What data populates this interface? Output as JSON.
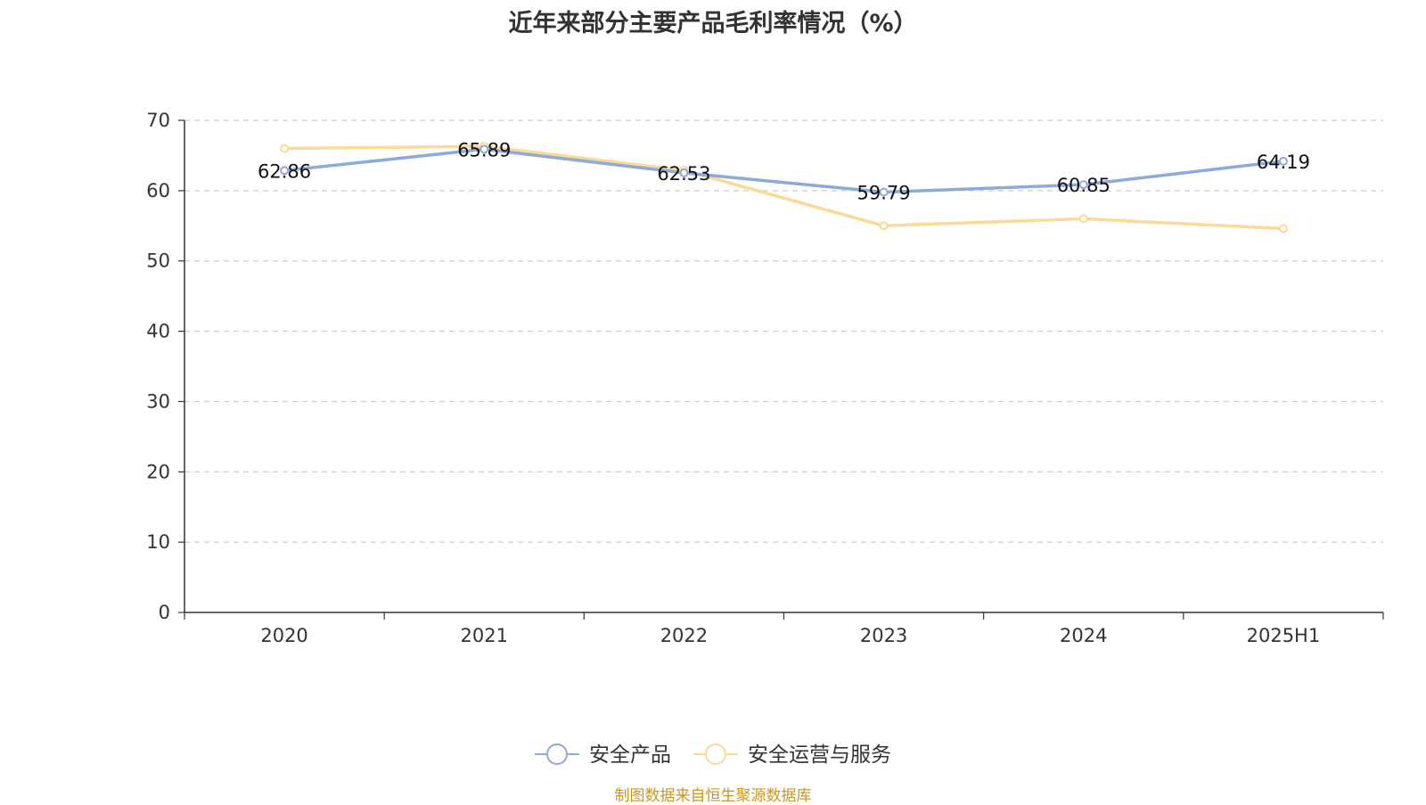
{
  "title": "近年来部分主要产品毛利率情况（%）",
  "source": "制图数据来自恒生聚源数据库",
  "chart_data": {
    "type": "line",
    "title": "近年来部分主要产品毛利率情况（%）",
    "categories": [
      "2020",
      "2021",
      "2022",
      "2023",
      "2024",
      "2025H1"
    ],
    "ylim": [
      0,
      70
    ],
    "yticks": [
      0,
      10,
      20,
      30,
      40,
      50,
      60,
      70
    ],
    "grid": true,
    "legend_position": "bottom",
    "series": [
      {
        "name": "安全产品",
        "color": "#8eaad8",
        "values": [
          62.86,
          65.89,
          62.53,
          59.79,
          60.85,
          64.19
        ],
        "labels": [
          "62.86",
          "65.89",
          "62.53",
          "59.79",
          "60.85",
          "64.19"
        ]
      },
      {
        "name": "安全运营与服务",
        "color": "#fcd899",
        "values": [
          66.0,
          66.3,
          62.9,
          55.0,
          56.0,
          54.6
        ]
      }
    ]
  }
}
